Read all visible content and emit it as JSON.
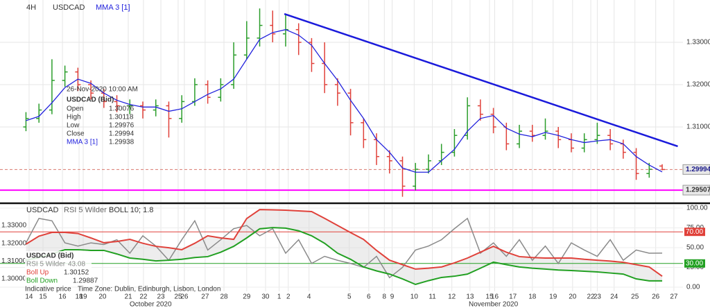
{
  "chart_data": [
    {
      "type": "ohlc",
      "interval": "4H",
      "symbol": "USDCAD",
      "x": [
        2,
        3,
        4,
        5,
        6,
        7,
        8,
        9,
        10,
        11,
        12,
        13,
        14,
        15,
        16,
        17,
        18,
        19,
        20,
        21,
        22,
        23,
        24,
        25,
        26,
        27,
        28,
        29,
        30,
        31,
        32,
        33,
        34,
        35,
        36,
        37,
        38,
        39,
        40,
        41,
        42,
        43,
        44,
        45,
        46,
        47,
        48,
        49,
        50,
        51
      ],
      "open": [
        1.31,
        1.312,
        1.314,
        1.321,
        1.323,
        1.32,
        1.318,
        1.316,
        1.315,
        1.315,
        1.314,
        1.315,
        1.312,
        1.316,
        1.32,
        1.317,
        1.32,
        1.327,
        1.331,
        1.334,
        1.332,
        1.333,
        1.33,
        1.325,
        1.32,
        1.318,
        1.311,
        1.307,
        1.303,
        1.302,
        1.296,
        1.3,
        1.302,
        1.304,
        1.308,
        1.315,
        1.313,
        1.31,
        1.306,
        1.309,
        1.308,
        1.309,
        1.307,
        1.305,
        1.307,
        1.308,
        1.306,
        1.304,
        1.299,
        1.30076
      ],
      "high": [
        1.3135,
        1.3155,
        1.326,
        1.3245,
        1.324,
        1.321,
        1.319,
        1.3175,
        1.3165,
        1.316,
        1.3165,
        1.316,
        1.3175,
        1.3215,
        1.321,
        1.3215,
        1.33,
        1.335,
        1.338,
        1.3375,
        1.3365,
        1.3345,
        1.331,
        1.33,
        1.3215,
        1.319,
        1.312,
        1.3085,
        1.3045,
        1.303,
        1.3015,
        1.3035,
        1.306,
        1.3095,
        1.317,
        1.3165,
        1.3145,
        1.311,
        1.3105,
        1.3105,
        1.312,
        1.31,
        1.3085,
        1.3085,
        1.311,
        1.3095,
        1.307,
        1.305,
        1.3015,
        1.30118
      ],
      "low": [
        1.309,
        1.311,
        1.313,
        1.3195,
        1.3185,
        1.3165,
        1.3145,
        1.3135,
        1.313,
        1.312,
        1.3125,
        1.3075,
        1.311,
        1.315,
        1.3155,
        1.316,
        1.319,
        1.326,
        1.329,
        1.33,
        1.329,
        1.327,
        1.323,
        1.318,
        1.315,
        1.308,
        1.305,
        1.301,
        1.299,
        1.2935,
        1.295,
        1.299,
        1.301,
        1.303,
        1.307,
        1.3115,
        1.3085,
        1.3045,
        1.305,
        1.3065,
        1.307,
        1.305,
        1.304,
        1.304,
        1.306,
        1.3045,
        1.3025,
        1.2975,
        1.298,
        1.29976
      ],
      "close": [
        1.312,
        1.314,
        1.321,
        1.323,
        1.32,
        1.318,
        1.316,
        1.315,
        1.315,
        1.314,
        1.315,
        1.312,
        1.316,
        1.32,
        1.317,
        1.32,
        1.327,
        1.331,
        1.334,
        1.332,
        1.333,
        1.33,
        1.325,
        1.32,
        1.318,
        1.311,
        1.307,
        1.303,
        1.302,
        1.296,
        1.3,
        1.302,
        1.304,
        1.308,
        1.315,
        1.313,
        1.31,
        1.306,
        1.309,
        1.308,
        1.309,
        1.307,
        1.305,
        1.307,
        1.308,
        1.306,
        1.304,
        1.299,
        1.3,
        1.29994
      ],
      "up_color": "#2a9d2a",
      "down_color": "#e0413a",
      "series": [
        {
          "name": "MMA 3 [1]",
          "color": "#2222dd",
          "values": [
            1.3115,
            1.3125,
            1.3157,
            1.3193,
            1.3213,
            1.3203,
            1.318,
            1.3163,
            1.3153,
            1.3147,
            1.3147,
            1.3137,
            1.3143,
            1.316,
            1.3177,
            1.319,
            1.3213,
            1.326,
            1.3307,
            1.3323,
            1.333,
            1.3317,
            1.3293,
            1.325,
            1.321,
            1.3163,
            1.312,
            1.307,
            1.304,
            1.3003,
            1.2993,
            1.2993,
            1.302,
            1.3047,
            1.309,
            1.312,
            1.3127,
            1.3097,
            1.3083,
            1.3077,
            1.3087,
            1.308,
            1.307,
            1.3063,
            1.3067,
            1.307,
            1.306,
            1.303,
            1.301,
            1.29938
          ]
        }
      ],
      "trendline": {
        "x": [
          21.9,
          52.2
        ],
        "y": [
          1.33672,
          1.30541
        ],
        "color": "#1a1adb"
      },
      "support_level": 1.29507,
      "support_color": "#ff00ff",
      "xlim": [
        0,
        52.6
      ],
      "ylim": [
        1.29213,
        1.34
      ],
      "yticks": [
        {
          "value": 1.33,
          "label": "1.33000"
        },
        {
          "value": 1.32,
          "label": "1.32000"
        },
        {
          "value": 1.31,
          "label": "1.31000"
        }
      ],
      "xticks": [
        {
          "value": 2.24,
          "label": "14"
        },
        {
          "value": 3.31,
          "label": "15"
        },
        {
          "value": 4.81,
          "label": "16"
        },
        {
          "value": 6.09,
          "label": "18"
        },
        {
          "value": 6.41,
          "label": "19"
        },
        {
          "value": 7.9,
          "label": "20"
        },
        {
          "value": 9.88,
          "label": "21"
        },
        {
          "value": 11.05,
          "label": "22"
        },
        {
          "value": 12.39,
          "label": "23"
        },
        {
          "value": 13.72,
          "label": "25"
        },
        {
          "value": 14.2,
          "label": "26"
        },
        {
          "value": 15.8,
          "label": "27"
        },
        {
          "value": 17.25,
          "label": "28"
        },
        {
          "value": 19.0,
          "label": "29"
        },
        {
          "value": 20.45,
          "label": "30"
        },
        {
          "value": 21.5,
          "label": "1"
        },
        {
          "value": 22.2,
          "label": "2"
        },
        {
          "value": 23.8,
          "label": "4"
        },
        {
          "value": 26.9,
          "label": "5"
        },
        {
          "value": 28.4,
          "label": "6"
        },
        {
          "value": 29.6,
          "label": "8"
        },
        {
          "value": 30.2,
          "label": "9"
        },
        {
          "value": 31.9,
          "label": "10"
        },
        {
          "value": 33.3,
          "label": "11"
        },
        {
          "value": 34.8,
          "label": "12"
        },
        {
          "value": 36.2,
          "label": "13"
        },
        {
          "value": 37.7,
          "label": "15"
        },
        {
          "value": 38.1,
          "label": "16"
        },
        {
          "value": 39.5,
          "label": "17"
        },
        {
          "value": 41.0,
          "label": "18"
        },
        {
          "value": 42.6,
          "label": "19"
        },
        {
          "value": 44.1,
          "label": "20"
        },
        {
          "value": 45.5,
          "label": "22"
        },
        {
          "value": 46.0,
          "label": "23"
        },
        {
          "value": 47.3,
          "label": "24"
        },
        {
          "value": 48.9,
          "label": "25"
        },
        {
          "value": 50.5,
          "label": "26"
        },
        {
          "value": 51.9,
          "label": "27"
        }
      ],
      "months": [
        {
          "value": 11.6,
          "label": "October 2020"
        },
        {
          "value": 38.0,
          "label": "November 2020"
        }
      ],
      "tooltip": {
        "time": "26-Nov-2020 10:00 AM",
        "title": "USDCAD (Bid)",
        "open_label": "Open",
        "high_label": "High",
        "low_label": "Low",
        "close_label": "Close"
      },
      "grid": true
    },
    {
      "type": "indicator",
      "symbol": "USDCAD",
      "bands_label": "BOLL 10; 1.8",
      "legend_title": "USDCAD (Bid)",
      "x": [
        2,
        3,
        4,
        5,
        6,
        7,
        8,
        9,
        10,
        11,
        12,
        13,
        14,
        15,
        16,
        17,
        18,
        19,
        20,
        21,
        22,
        23,
        24,
        25,
        26,
        27,
        28,
        29,
        30,
        31,
        32,
        33,
        34,
        35,
        36,
        37,
        38,
        39,
        40,
        41,
        42,
        43,
        44,
        45,
        46,
        47,
        48,
        49,
        50,
        51
      ],
      "series": [
        {
          "name": "RSI 5 Wilder",
          "color": "#8a8a8a",
          "axis": "y2",
          "values": [
            56,
            87,
            84,
            56,
            52,
            56,
            54,
            60,
            43,
            65,
            52,
            34,
            60,
            84,
            47,
            60,
            74,
            78,
            65,
            74,
            43,
            60,
            30,
            39,
            34,
            30,
            25,
            39,
            12,
            25,
            47,
            52,
            60,
            74,
            87,
            43,
            56,
            39,
            60,
            34,
            52,
            30,
            56,
            47,
            39,
            60,
            34,
            47,
            43,
            43.08
          ]
        },
        {
          "name": "Boll Up",
          "color": "#e0413a",
          "values": [
            1.3195,
            1.324,
            1.3261,
            1.3261,
            1.3255,
            1.323,
            1.3203,
            1.321,
            1.3222,
            1.32,
            1.3183,
            1.3175,
            1.3164,
            1.32,
            1.3242,
            1.323,
            1.3222,
            1.3339,
            1.3389,
            1.3388,
            1.3386,
            1.3382,
            1.3378,
            1.334,
            1.33,
            1.326,
            1.3222,
            1.316,
            1.3105,
            1.308,
            1.3055,
            1.306,
            1.3067,
            1.309,
            1.3117,
            1.315,
            1.3183,
            1.315,
            1.3125,
            1.312,
            1.3117,
            1.3117,
            1.3117,
            1.311,
            1.3105,
            1.31,
            1.3093,
            1.308,
            1.3067,
            1.30152
          ]
        },
        {
          "name": "Boll Down",
          "color": "#22a022",
          "values": [
            1.3105,
            1.312,
            1.314,
            1.3164,
            1.3164,
            1.316,
            1.316,
            1.314,
            1.3117,
            1.311,
            1.3101,
            1.3105,
            1.311,
            1.312,
            1.3125,
            1.315,
            1.3183,
            1.323,
            1.3281,
            1.3288,
            1.3285,
            1.327,
            1.3242,
            1.32,
            1.3144,
            1.311,
            1.3067,
            1.3045,
            1.3027,
            1.3,
            1.2969,
            1.299,
            1.3008,
            1.3015,
            1.3027,
            1.306,
            1.3094,
            1.308,
            1.3067,
            1.306,
            1.3055,
            1.305,
            1.3047,
            1.3043,
            1.3039,
            1.3033,
            1.3027,
            1.3,
            1.2989,
            1.29887
          ]
        }
      ],
      "xlim": [
        0,
        52.6
      ],
      "ylim": [
        1.293,
        1.3417
      ],
      "y2lim": [
        -5.3,
        104.4
      ],
      "yticks": [
        {
          "value": 1.33,
          "label": "1.33000"
        },
        {
          "value": 1.32,
          "label": "1.32000"
        },
        {
          "value": 1.31,
          "label": "1.31000"
        },
        {
          "value": 1.3,
          "label": "1.30000"
        }
      ],
      "y2ticks": [
        {
          "value": 100,
          "label": "100.00"
        },
        {
          "value": 75,
          "label": "75.00"
        },
        {
          "value": 50,
          "label": "50.00"
        },
        {
          "value": 25,
          "label": "25.00"
        },
        {
          "value": 0,
          "label": "0.00"
        }
      ],
      "levels": [
        {
          "value": 70,
          "label": "70.00",
          "color": "#e0413a"
        },
        {
          "value": 30,
          "label": "30.00",
          "color": "#22a022"
        }
      ],
      "notes": [
        "Indicative price",
        "Time Zone: Dublin, Edinburgh, Lisbon, London"
      ]
    }
  ]
}
